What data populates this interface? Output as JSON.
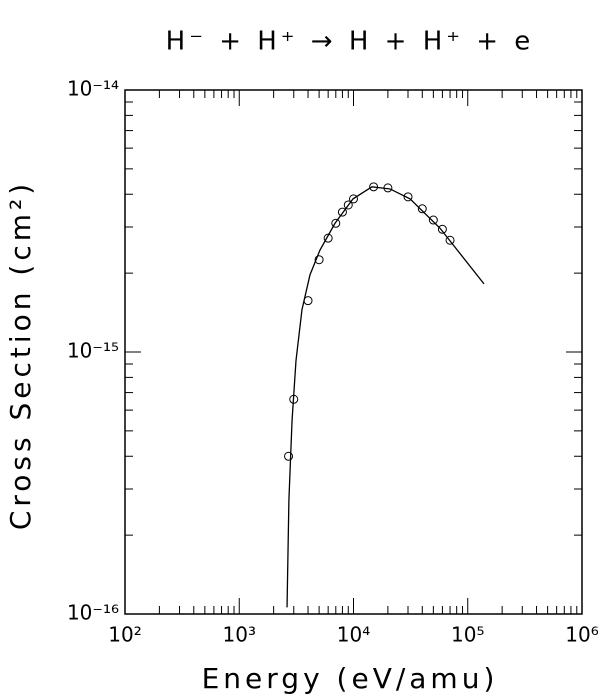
{
  "chart_data": {
    "type": "scatter",
    "title": "H⁻ + H⁺ → H + H⁺ + e",
    "x_label": "Energy (eV/amu)",
    "y_label": "Cross Section (cm²)",
    "xscale": "log",
    "yscale": "log",
    "xlim": [
      100,
      1000000
    ],
    "ylim": [
      1e-16,
      1e-14
    ],
    "xticks": [
      {
        "value": 100,
        "label": "10²"
      },
      {
        "value": 1000,
        "label": "10³"
      },
      {
        "value": 10000,
        "label": "10⁴"
      },
      {
        "value": 100000,
        "label": "10⁵"
      },
      {
        "value": 1000000,
        "label": "10⁶"
      }
    ],
    "yticks": [
      {
        "value": 1e-16,
        "label": "10⁻¹⁶"
      },
      {
        "value": 1e-15,
        "label": "10⁻¹⁵"
      },
      {
        "value": 1e-14,
        "label": "10⁻¹⁴"
      }
    ],
    "color": "#000000",
    "points": {
      "x": [
        2700,
        3000,
        4000,
        5000,
        6000,
        7000,
        8000,
        9000,
        10000,
        15000,
        20000,
        30000,
        40000,
        50000,
        60000,
        70000
      ],
      "y": [
        4e-16,
        6.6e-16,
        1.57e-15,
        2.25e-15,
        2.72e-15,
        3.1e-15,
        3.42e-15,
        3.64e-15,
        3.84e-15,
        4.27e-15,
        4.23e-15,
        3.91e-15,
        3.52e-15,
        3.19e-15,
        2.94e-15,
        2.67e-15
      ]
    },
    "fit": {
      "x": [
        2620,
        2720,
        2900,
        3140,
        3540,
        4160,
        5090,
        6890,
        9900,
        14500,
        20900,
        31300,
        57100,
        138700
      ],
      "y": [
        1.06e-16,
        2.72e-16,
        5.5e-16,
        9.3e-16,
        1.45e-15,
        1.97e-15,
        2.45e-15,
        3.1e-15,
        3.84e-15,
        4.27e-15,
        4.19e-15,
        3.84e-15,
        2.97e-15,
        1.82e-15
      ]
    }
  }
}
